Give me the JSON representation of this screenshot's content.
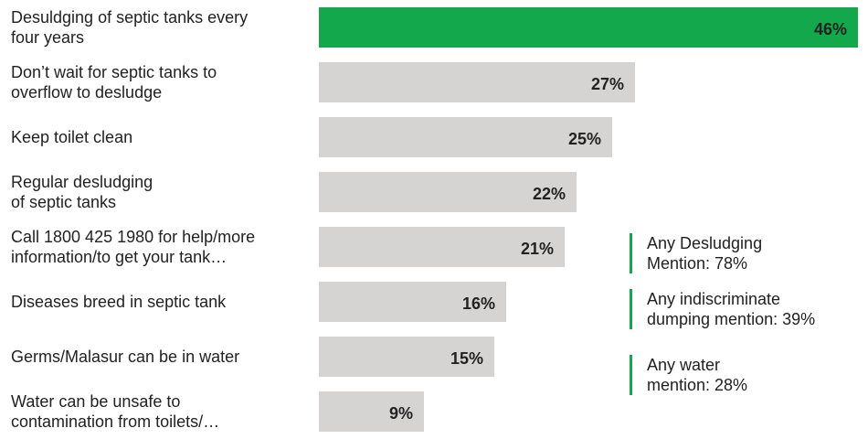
{
  "chart_data": {
    "type": "bar",
    "orientation": "horizontal",
    "categories": [
      "Desuldging of septic tanks every\nfour years",
      "Don’t wait for  septic tanks to\noverflow to desludge",
      "Keep toilet clean",
      "Regular desludging\nof septic tanks",
      "Call 1800 425 1980 for help/more\ninformation/to get your tank…",
      "Diseases breed in septic tank",
      "Germs/Malasur can be in water",
      "Water can be unsafe to\ncontamination from toilets/…"
    ],
    "values": [
      46,
      27,
      25,
      22,
      21,
      16,
      15,
      9
    ],
    "value_labels": [
      "46%",
      "27%",
      "25%",
      "22%",
      "21%",
      "16%",
      "15%",
      "9%"
    ],
    "xlim": [
      0,
      46
    ],
    "highlight_index": 0,
    "colors": {
      "highlight": "#13a84b",
      "default": "#d6d3d3",
      "note_rule": "#13a84b"
    },
    "annotations": [
      "Any Desludging\nMention: 78%",
      "Any indiscriminate\ndumping mention: 39%",
      "Any water\nmention: 28%"
    ],
    "grid": false
  }
}
